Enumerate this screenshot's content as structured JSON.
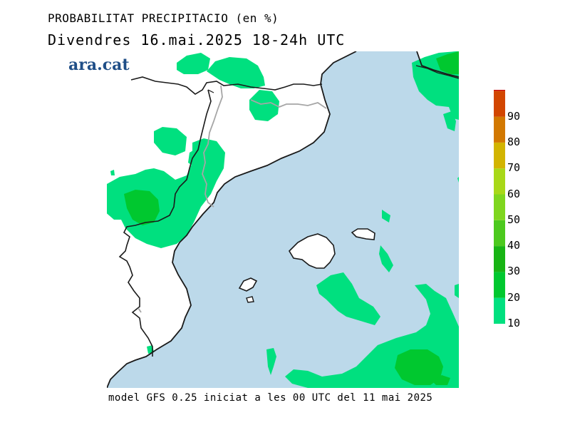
{
  "header": {
    "title": "PROBABILITAT PRECIPITACIO (en %)",
    "subtitle": "Divendres  16.mai.2025  18-24h  UTC"
  },
  "logo": {
    "text": "ara.cat",
    "color": "#1f4e87"
  },
  "footer": {
    "text": "model GFS 0.25 iniciat a les 00 UTC del 11 mai 2025"
  },
  "map": {
    "sea_color": "#bcd9ea",
    "land_color": "#ffffff",
    "coast_color": "#1a1a1a",
    "border_color": "#a6a6a6"
  },
  "colorbar": {
    "levels": [
      {
        "label": "10",
        "color": "#00e07f"
      },
      {
        "label": "20",
        "color": "#00c82f"
      },
      {
        "label": "30",
        "color": "#18b414"
      },
      {
        "label": "40",
        "color": "#4cc91e"
      },
      {
        "label": "50",
        "color": "#7fd61e"
      },
      {
        "label": "60",
        "color": "#a8d818"
      },
      {
        "label": "70",
        "color": "#d2b400"
      },
      {
        "label": "80",
        "color": "#d27800"
      },
      {
        "label": "90",
        "color": "#d24600"
      },
      {
        "label": "",
        "color": "#c80000"
      }
    ]
  }
}
